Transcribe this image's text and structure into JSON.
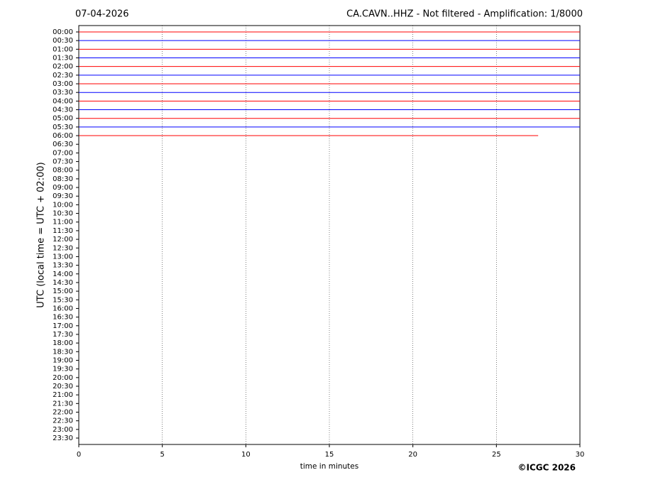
{
  "chart_data": {
    "type": "helicorder",
    "title_left": "07-04-2026",
    "title": "CA.CAVN..HHZ - Not filtered - Amplification: 1/8000",
    "ylabel": "UTC (local time = UTC + 02:00)",
    "xlabel": "time in minutes",
    "copyright": "©ICGC 2026",
    "categories": [
      "00:00",
      "00:30",
      "01:00",
      "01:30",
      "02:00",
      "02:30",
      "03:00",
      "03:30",
      "04:00",
      "04:30",
      "05:00",
      "05:30",
      "06:00",
      "06:30",
      "07:00",
      "07:30",
      "08:00",
      "08:30",
      "09:00",
      "09:30",
      "10:00",
      "10:30",
      "11:00",
      "11:30",
      "12:00",
      "12:30",
      "13:00",
      "13:30",
      "14:00",
      "14:30",
      "15:00",
      "15:30",
      "16:00",
      "16:30",
      "17:00",
      "17:30",
      "18:00",
      "18:30",
      "19:00",
      "19:30",
      "20:00",
      "20:30",
      "21:00",
      "21:30",
      "22:00",
      "22:30",
      "23:00",
      "23:30"
    ],
    "values": [
      30,
      30,
      30,
      30,
      30,
      30,
      30,
      30,
      30,
      30,
      30,
      30,
      27.5,
      null,
      null,
      null,
      null,
      null,
      null,
      null,
      null,
      null,
      null,
      null,
      null,
      null,
      null,
      null,
      null,
      null,
      null,
      null,
      null,
      null,
      null,
      null,
      null,
      null,
      null,
      null,
      null,
      null,
      null,
      null,
      null,
      null,
      null,
      null
    ],
    "colors": [
      "#ff0000",
      "#0000ff"
    ],
    "xlim": [
      0,
      30
    ],
    "xticks": [
      0,
      5,
      10,
      15,
      20,
      25,
      30
    ],
    "grid": true
  }
}
